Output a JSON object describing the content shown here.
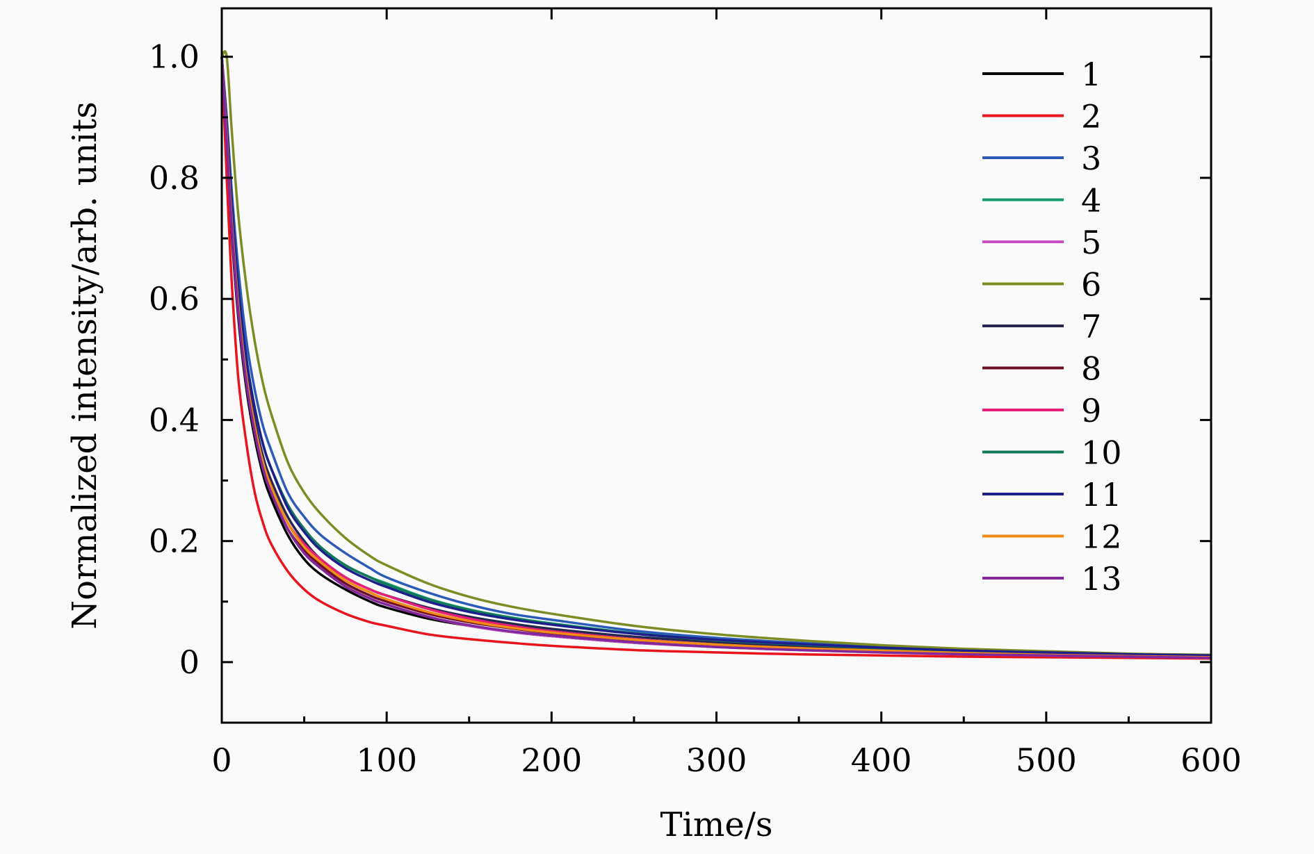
{
  "chart_data": {
    "type": "line",
    "xlabel": "Time/s",
    "ylabel": "Normalized intensity/arb. units",
    "xlim": [
      0,
      600
    ],
    "ylim": [
      -0.1,
      1.08
    ],
    "x_ticks": [
      "0",
      "100",
      "200",
      "300",
      "400",
      "500",
      "600"
    ],
    "y_ticks": [
      "0",
      "0.2",
      "0.4",
      "0.6",
      "0.8",
      "1.0"
    ],
    "grid": false,
    "legend_position": "top-right",
    "x": [
      0,
      3,
      6,
      10,
      15,
      20,
      25,
      30,
      40,
      50,
      60,
      75,
      90,
      100,
      125,
      150,
      175,
      200,
      250,
      300,
      350,
      400,
      450,
      500,
      550,
      600
    ],
    "series": [
      {
        "name": "1",
        "color": "#000000",
        "values": [
          1.0,
          0.86,
          0.71,
          0.57,
          0.45,
          0.37,
          0.31,
          0.27,
          0.21,
          0.17,
          0.145,
          0.12,
          0.1,
          0.09,
          0.072,
          0.06,
          0.05,
          0.043,
          0.032,
          0.026,
          0.021,
          0.017,
          0.014,
          0.011,
          0.009,
          0.008
        ]
      },
      {
        "name": "2",
        "color": "#e8141e",
        "values": [
          1.0,
          0.8,
          0.63,
          0.47,
          0.36,
          0.28,
          0.23,
          0.195,
          0.15,
          0.12,
          0.1,
          0.08,
          0.066,
          0.06,
          0.046,
          0.038,
          0.032,
          0.027,
          0.02,
          0.016,
          0.013,
          0.011,
          0.009,
          0.008,
          0.007,
          0.006
        ]
      },
      {
        "name": "3",
        "color": "#2c5ab8",
        "values": [
          1.0,
          0.9,
          0.78,
          0.65,
          0.53,
          0.45,
          0.39,
          0.35,
          0.28,
          0.24,
          0.21,
          0.18,
          0.155,
          0.14,
          0.115,
          0.095,
          0.08,
          0.07,
          0.052,
          0.04,
          0.032,
          0.025,
          0.02,
          0.016,
          0.013,
          0.011
        ]
      },
      {
        "name": "4",
        "color": "#139a6e",
        "values": [
          1.0,
          0.89,
          0.76,
          0.62,
          0.5,
          0.42,
          0.36,
          0.32,
          0.26,
          0.22,
          0.19,
          0.16,
          0.14,
          0.13,
          0.105,
          0.087,
          0.074,
          0.064,
          0.048,
          0.037,
          0.03,
          0.024,
          0.019,
          0.015,
          0.012,
          0.01
        ]
      },
      {
        "name": "5",
        "color": "#c84ec8",
        "values": [
          1.0,
          0.86,
          0.72,
          0.58,
          0.46,
          0.38,
          0.32,
          0.28,
          0.22,
          0.18,
          0.155,
          0.125,
          0.105,
          0.095,
          0.075,
          0.06,
          0.05,
          0.043,
          0.032,
          0.025,
          0.02,
          0.016,
          0.013,
          0.011,
          0.009,
          0.007
        ]
      },
      {
        "name": "6",
        "color": "#7d8c24",
        "values": [
          1.0,
          1.0,
          0.88,
          0.74,
          0.62,
          0.53,
          0.46,
          0.41,
          0.33,
          0.28,
          0.245,
          0.205,
          0.175,
          0.16,
          0.13,
          0.108,
          0.092,
          0.08,
          0.06,
          0.046,
          0.036,
          0.028,
          0.022,
          0.018,
          0.014,
          0.012
        ]
      },
      {
        "name": "7",
        "color": "#262650",
        "values": [
          1.0,
          0.88,
          0.74,
          0.6,
          0.48,
          0.4,
          0.34,
          0.3,
          0.24,
          0.2,
          0.17,
          0.14,
          0.12,
          0.11,
          0.09,
          0.075,
          0.064,
          0.055,
          0.042,
          0.033,
          0.026,
          0.021,
          0.017,
          0.014,
          0.011,
          0.009
        ]
      },
      {
        "name": "8",
        "color": "#6e0f28",
        "values": [
          1.0,
          0.86,
          0.72,
          0.58,
          0.46,
          0.38,
          0.32,
          0.28,
          0.22,
          0.185,
          0.16,
          0.13,
          0.11,
          0.1,
          0.08,
          0.066,
          0.056,
          0.048,
          0.036,
          0.028,
          0.022,
          0.018,
          0.014,
          0.012,
          0.01,
          0.008
        ]
      },
      {
        "name": "9",
        "color": "#e61e78",
        "values": [
          1.0,
          0.87,
          0.73,
          0.59,
          0.47,
          0.39,
          0.33,
          0.29,
          0.23,
          0.195,
          0.17,
          0.14,
          0.12,
          0.11,
          0.088,
          0.072,
          0.06,
          0.051,
          0.038,
          0.029,
          0.023,
          0.018,
          0.015,
          0.012,
          0.01,
          0.008
        ]
      },
      {
        "name": "10",
        "color": "#12785a",
        "values": [
          1.0,
          0.89,
          0.76,
          0.62,
          0.5,
          0.42,
          0.36,
          0.32,
          0.26,
          0.22,
          0.19,
          0.16,
          0.14,
          0.128,
          0.104,
          0.086,
          0.073,
          0.063,
          0.047,
          0.036,
          0.029,
          0.023,
          0.018,
          0.015,
          0.012,
          0.01
        ]
      },
      {
        "name": "11",
        "color": "#1e1e8c",
        "values": [
          1.0,
          0.89,
          0.76,
          0.62,
          0.5,
          0.42,
          0.36,
          0.32,
          0.255,
          0.215,
          0.185,
          0.155,
          0.135,
          0.124,
          0.1,
          0.083,
          0.071,
          0.062,
          0.047,
          0.037,
          0.03,
          0.024,
          0.019,
          0.016,
          0.013,
          0.011
        ]
      },
      {
        "name": "12",
        "color": "#f08c14",
        "values": [
          1.0,
          0.87,
          0.73,
          0.59,
          0.47,
          0.39,
          0.33,
          0.29,
          0.23,
          0.19,
          0.165,
          0.135,
          0.115,
          0.104,
          0.083,
          0.068,
          0.057,
          0.049,
          0.037,
          0.029,
          0.023,
          0.019,
          0.015,
          0.012,
          0.01,
          0.008
        ]
      },
      {
        "name": "13",
        "color": "#82289c",
        "values": [
          1.0,
          0.86,
          0.72,
          0.58,
          0.46,
          0.38,
          0.32,
          0.28,
          0.22,
          0.18,
          0.155,
          0.125,
          0.105,
          0.095,
          0.075,
          0.061,
          0.051,
          0.044,
          0.033,
          0.025,
          0.02,
          0.016,
          0.013,
          0.011,
          0.009,
          0.007
        ]
      }
    ]
  }
}
